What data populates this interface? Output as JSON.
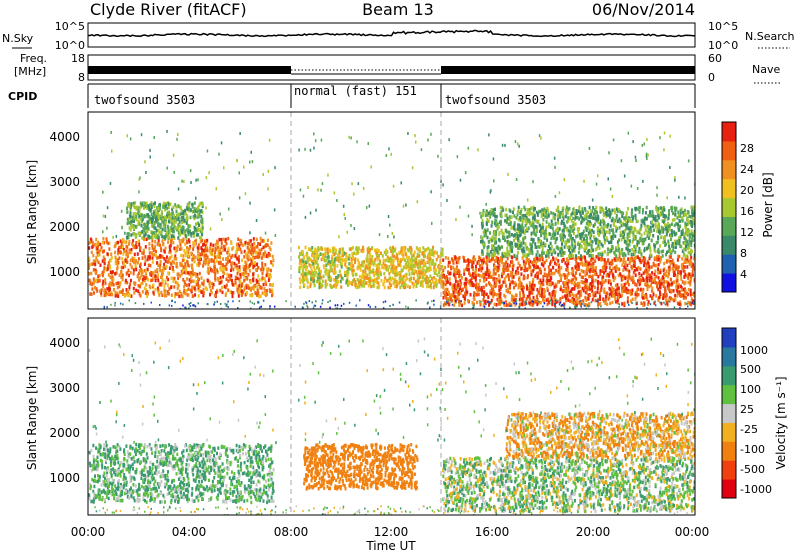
{
  "header": {
    "station": "Clyde River (fitACF)",
    "beam": "Beam 13",
    "date": "06/Nov/2014"
  },
  "noise_panel": {
    "left_label": "N.Sky",
    "left_ticks": [
      "10^5",
      "10^0"
    ],
    "right_label": "N.Search",
    "right_ticks": [
      "10^5",
      "10^0"
    ]
  },
  "freq_panel": {
    "left_label_1": "Freq.",
    "left_label_2": "[MHz]",
    "left_ticks": [
      "18",
      "8"
    ],
    "right_label": "Nave",
    "right_ticks": [
      "60",
      "0"
    ]
  },
  "cpid_panel": {
    "label": "CPID",
    "segments": [
      {
        "label": "twofsound 3503",
        "start": 0,
        "end": 8
      },
      {
        "label": "normal (fast) 151",
        "start": 8,
        "end": 14
      },
      {
        "label": "twofsound 3503",
        "start": 14,
        "end": 24
      }
    ]
  },
  "power_panel": {
    "ylabel": "Slant Range [km]",
    "yticks": [
      "1000",
      "2000",
      "3000",
      "4000"
    ],
    "colorbar_label": "Power [dB]",
    "colorbar_ticks": [
      "4",
      "8",
      "12",
      "16",
      "20",
      "24",
      "28"
    ],
    "colors": [
      "#1010e0",
      "#2060b0",
      "#3a8a6a",
      "#58a858",
      "#a8c830",
      "#f0c020",
      "#f09020",
      "#f06010",
      "#e82010"
    ]
  },
  "velocity_panel": {
    "ylabel": "Slant Range [km]",
    "yticks": [
      "1000",
      "2000",
      "3000",
      "4000"
    ],
    "colorbar_label": "Velocity [m s⁻¹]",
    "colorbar_ticks": [
      "1000",
      "500",
      "100",
      "25",
      "-25",
      "-100",
      "-500",
      "-1000"
    ],
    "colors": [
      "#2040c0",
      "#2878a0",
      "#3a9a70",
      "#60c040",
      "#c8c8c8",
      "#f0b020",
      "#f08010",
      "#f04010",
      "#e00010"
    ]
  },
  "xaxis": {
    "label": "Time UT",
    "ticks": [
      "00:00",
      "04:00",
      "08:00",
      "12:00",
      "16:00",
      "20:00",
      "00:00"
    ]
  },
  "chart_data": {
    "type": "heatmap",
    "title": "Clyde River (fitACF)",
    "xlabel": "Time UT",
    "ylabel": "Slant Range [km]",
    "xlim": [
      0,
      24
    ],
    "ylim": [
      180,
      4600
    ],
    "mode_change_times": [
      8,
      14
    ],
    "power_regions": [
      {
        "t0": 0.0,
        "t1": 7.3,
        "r0": 500,
        "r1": 1800,
        "level": 26
      },
      {
        "t0": 1.5,
        "t1": 4.5,
        "r0": 1800,
        "r1": 2600,
        "level": 12
      },
      {
        "t0": 8.3,
        "t1": 10.3,
        "r0": 700,
        "r1": 1600,
        "level": 18
      },
      {
        "t0": 10.3,
        "t1": 14.0,
        "r0": 700,
        "r1": 1600,
        "level": 20
      },
      {
        "t0": 14.0,
        "t1": 24.0,
        "r0": 300,
        "r1": 1400,
        "level": 28
      },
      {
        "t0": 15.5,
        "t1": 24.0,
        "r0": 1400,
        "r1": 2500,
        "level": 12
      }
    ],
    "velocity_regions": [
      {
        "t0": 0.0,
        "t1": 7.3,
        "r0": 500,
        "r1": 1800,
        "vel": 100
      },
      {
        "t0": 8.5,
        "t1": 13.0,
        "r0": 800,
        "r1": 1800,
        "vel": -300
      },
      {
        "t0": 14.0,
        "t1": 24.0,
        "r0": 300,
        "r1": 1500,
        "vel": 50
      },
      {
        "t0": 16.5,
        "t1": 24.0,
        "r0": 1500,
        "r1": 2500,
        "vel": -80
      }
    ]
  }
}
